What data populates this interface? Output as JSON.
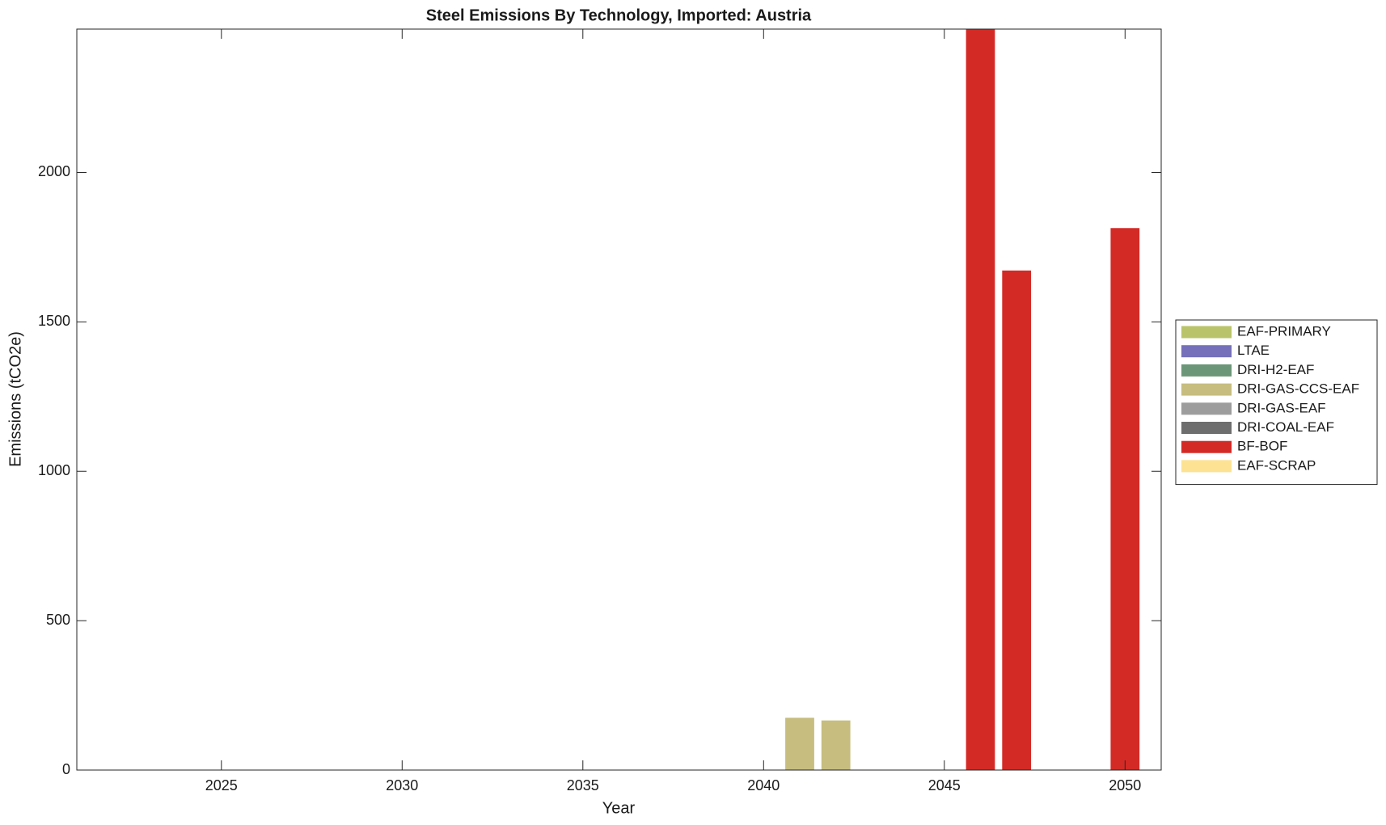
{
  "chart_data": {
    "type": "stacked_bar",
    "title": "Steel Emissions By Technology, Imported: Austria",
    "x_label": "Year",
    "y_label": "Emissions (tCO2e)",
    "x": [
      2041,
      2042,
      2046,
      2047,
      2050
    ],
    "series": [
      {
        "name": "EAF-PRIMARY",
        "color": "#b9c46a",
        "values": [
          0,
          0,
          0,
          0,
          0
        ]
      },
      {
        "name": "LTAE",
        "color": "#7570b9",
        "values": [
          0,
          0,
          0,
          0,
          0
        ]
      },
      {
        "name": "DRI-H2-EAF",
        "color": "#6b9778",
        "values": [
          0,
          0,
          0,
          0,
          0
        ]
      },
      {
        "name": "DRI-GAS-CCS-EAF",
        "color": "#c6bd7f",
        "values": [
          175,
          166,
          0,
          0,
          0
        ]
      },
      {
        "name": "DRI-GAS-EAF",
        "color": "#9d9d9d",
        "values": [
          0,
          0,
          0,
          0,
          0
        ]
      },
      {
        "name": "DRI-COAL-EAF",
        "color": "#6e6e6e",
        "values": [
          0,
          0,
          0,
          0,
          0
        ]
      },
      {
        "name": "BF-BOF",
        "color": "#d42a26",
        "values": [
          0,
          0,
          2480,
          1672,
          1814
        ]
      },
      {
        "name": "EAF-SCRAP",
        "color": "#fde293",
        "values": [
          0,
          0,
          0,
          0,
          0
        ]
      }
    ],
    "xlim": [
      2021,
      2051
    ],
    "xticks": [
      2025,
      2030,
      2035,
      2040,
      2045,
      2050
    ],
    "ylim": [
      0,
      2480
    ],
    "yticks": [
      0,
      500,
      1000,
      1500,
      2000
    ],
    "legend": "outside-right"
  }
}
